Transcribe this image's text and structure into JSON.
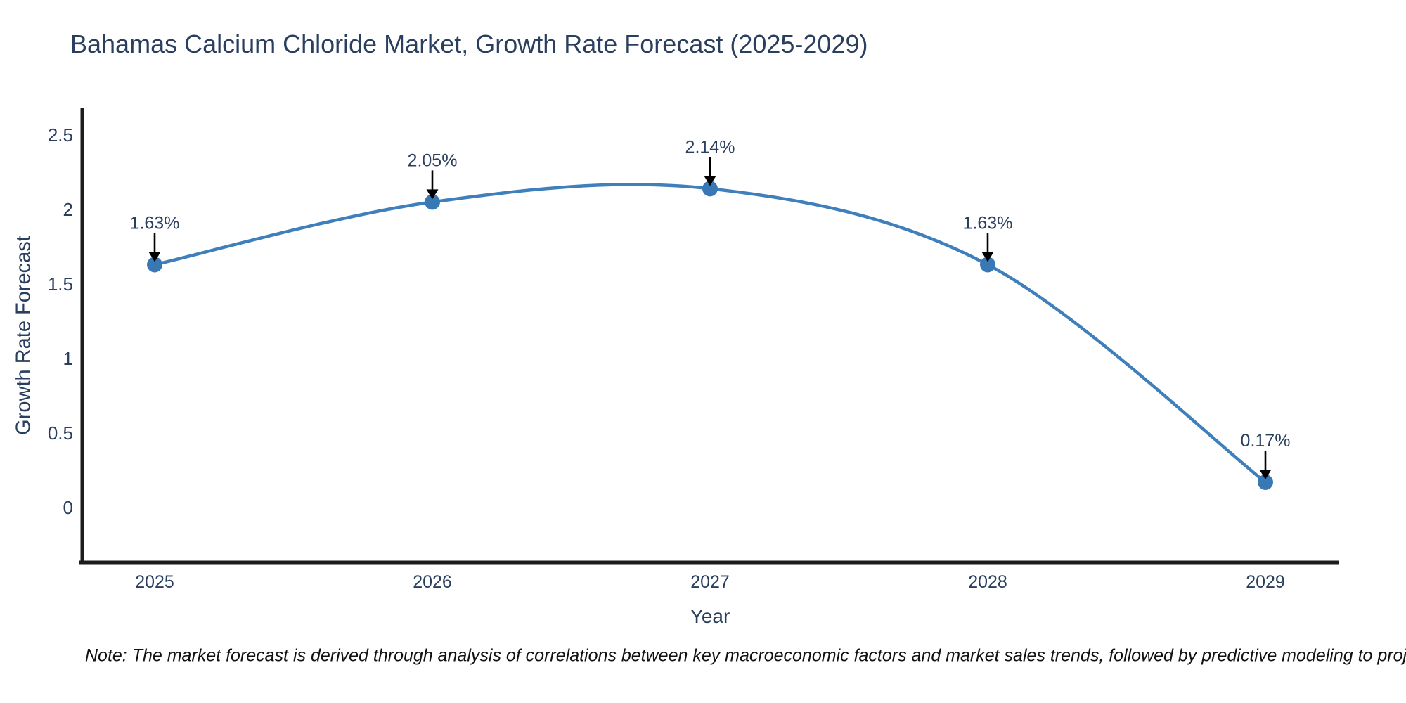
{
  "note": "Note: The market forecast is derived through analysis of correlations between key macroeconomic factors and market sales trends, followed by predictive modeling to project future sales",
  "chart_data": {
    "type": "line",
    "line_shape": "spline",
    "title": "Bahamas Calcium Chloride Market, Growth Rate Forecast (2025-2029)",
    "xlabel": "Year",
    "ylabel": "Growth Rate Forecast",
    "categories": [
      "2025",
      "2026",
      "2027",
      "2028",
      "2029"
    ],
    "values": [
      1.63,
      2.05,
      2.14,
      1.63,
      0.17
    ],
    "point_labels": [
      "1.63%",
      "2.05%",
      "2.14%",
      "1.63%",
      "0.17%"
    ],
    "yticks": [
      "0",
      "0.5",
      "1",
      "1.5",
      "2",
      "2.5"
    ],
    "ylim": [
      -0.37,
      2.7
    ],
    "grid": false,
    "legend": "none",
    "marker": "circle",
    "annotations": "arrow-down-to-point",
    "colors": {
      "line": "#3f7fbc",
      "marker": "#3778b5",
      "arrow": "#000000",
      "text": "#2a3f5f",
      "axis": "#1c1c1e",
      "background": "#ffffff",
      "note_text": "#111111"
    }
  }
}
